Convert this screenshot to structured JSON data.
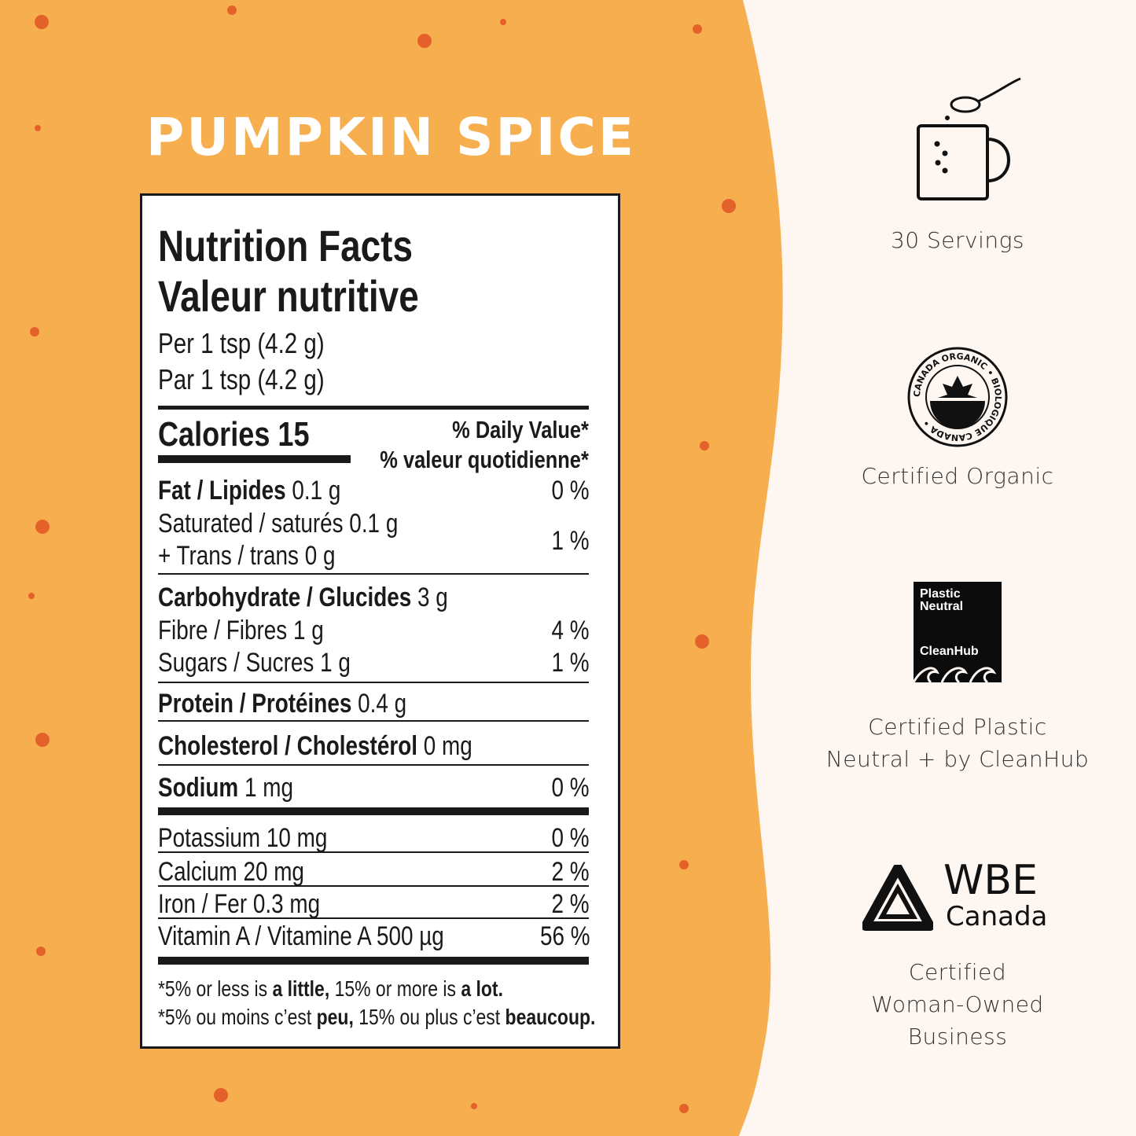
{
  "colors": {
    "background_orange": "#F6AE4E",
    "panel_cream": "#FDF6F1",
    "dots": "#E5612A",
    "text": "#1a1a1a"
  },
  "product_title": "PUMPKIN SPICE",
  "nutrition": {
    "title_en": "Nutrition Facts",
    "title_fr": "Valeur nutritive",
    "serving_en": "Per 1 tsp (4.2 g)",
    "serving_fr": "Par 1 tsp (4.2 g)",
    "calories_label": "Calories 15",
    "dv_en": "% Daily Value*",
    "dv_fr": "% valeur quotidienne*",
    "rows": [
      {
        "name": "Fat / Lipides",
        "amount": "0.1 g",
        "dv": "0 %"
      },
      {
        "name": "Saturated / saturés 0.1 g",
        "amount": "",
        "dv": "1 %"
      },
      {
        "name": "+ Trans / trans 0 g",
        "amount": "",
        "dv": ""
      },
      {
        "name": "Carbohydrate / Glucides",
        "amount": "3 g",
        "dv": ""
      },
      {
        "name": "Fibre / Fibres 1 g",
        "amount": "",
        "dv": "4 %"
      },
      {
        "name": "Sugars / Sucres 1 g",
        "amount": "",
        "dv": "1 %"
      },
      {
        "name": "Protein / Protéines",
        "amount": "0.4 g",
        "dv": ""
      },
      {
        "name": "Cholesterol / Cholestérol",
        "amount": "0 mg",
        "dv": ""
      },
      {
        "name": "Sodium",
        "amount": "1 mg",
        "dv": "0 %"
      },
      {
        "name": "Potassium 10 mg",
        "amount": "",
        "dv": "0 %"
      },
      {
        "name": "Calcium 20 mg",
        "amount": "",
        "dv": "2 %"
      },
      {
        "name": "Iron / Fer 0.3 mg",
        "amount": "",
        "dv": "2 %"
      },
      {
        "name": "Vitamin A / Vitamine A 500 µg",
        "amount": "",
        "dv": "56 %"
      }
    ],
    "footnote_en": {
      "a": "*5% or less is ",
      "b": "a little,",
      "c": " 15% or more is ",
      "d": "a lot."
    },
    "footnote_fr": {
      "a": "*5% ou moins c’est ",
      "b": "peu,",
      "c": " 15% ou plus c’est ",
      "d": "beaucoup."
    }
  },
  "badges": [
    {
      "icon": "mug-spoon-icon",
      "lines": [
        "30 Servings"
      ]
    },
    {
      "icon": "canada-organic-logo",
      "logo_text": "CANADA ORGANIC • BIOLOGIQUE CANADA •",
      "lines": [
        "Certified Organic"
      ]
    },
    {
      "icon": "plastic-neutral-cleanhub-logo",
      "logo_text": [
        "Plastic",
        "Neutral",
        "CleanHub"
      ],
      "lines": [
        "Certified Plastic",
        "Neutral + by CleanHub"
      ]
    },
    {
      "icon": "wbe-canada-logo",
      "logo_text": [
        "WBE",
        "Canada"
      ],
      "lines": [
        "Certified",
        "Woman-Owned",
        "Business"
      ]
    }
  ]
}
